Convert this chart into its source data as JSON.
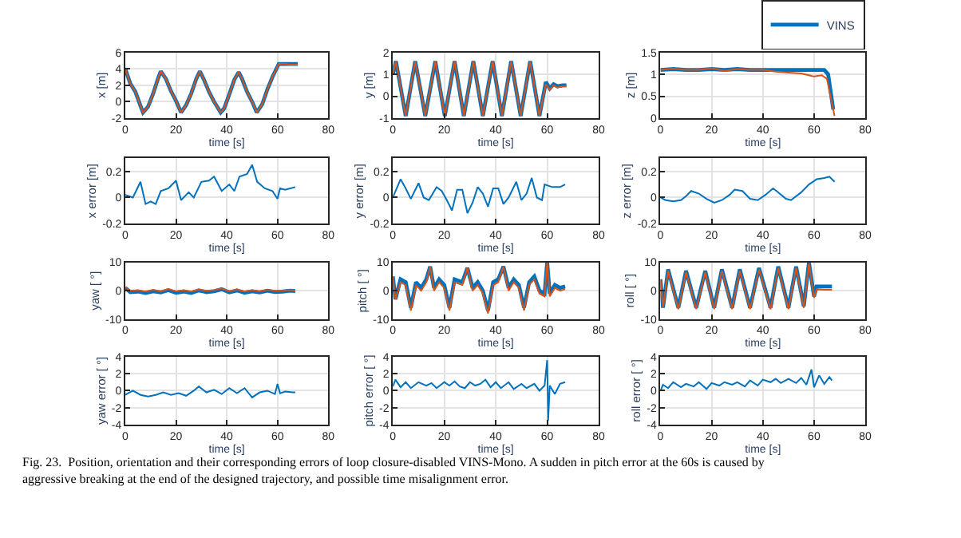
{
  "chart_data": [
    {
      "type": "line",
      "xlabel": "time [s]",
      "ylabel": "x [m]",
      "xlim": [
        0,
        80
      ],
      "xticks": [
        0,
        20,
        40,
        60,
        80
      ],
      "ylim": [
        -2,
        6
      ],
      "yticks": [
        -2,
        0,
        2,
        4,
        6
      ],
      "grid": true,
      "series": [
        {
          "color": "#0072bd",
          "x": [
            0,
            2,
            4,
            6,
            7,
            9,
            11,
            13,
            14,
            16,
            18,
            20,
            22,
            24,
            26,
            28,
            29.4,
            31,
            33,
            35,
            37.6,
            39,
            41,
            43,
            44.7,
            46,
            48,
            50,
            51.8,
            54,
            56,
            58,
            60.5,
            63,
            65,
            68
          ],
          "values": [
            4,
            2.2,
            1.2,
            -0.5,
            -1.3,
            -0.6,
            1.0,
            2.9,
            3.7,
            2.8,
            1.3,
            0.1,
            -1.3,
            -0.4,
            1.0,
            2.8,
            3.7,
            2.7,
            1.2,
            0.0,
            -1.3,
            -0.8,
            0.9,
            2.7,
            3.6,
            2.8,
            1.2,
            0.0,
            -1.3,
            -0.3,
            1.5,
            3.0,
            4.6,
            4.6,
            4.6,
            4.6
          ]
        },
        {
          "color": "#d95319",
          "x": [
            0,
            2,
            4,
            6,
            7,
            9,
            11,
            13,
            14,
            16,
            18,
            20,
            22,
            24,
            26,
            28,
            29.4,
            31,
            33,
            35,
            37.6,
            39,
            41,
            43,
            44.7,
            46,
            48,
            50,
            51.8,
            54,
            56,
            58,
            60.5,
            63,
            65,
            68
          ],
          "values": [
            4,
            2.2,
            1.2,
            -0.5,
            -1.3,
            -0.6,
            1.0,
            2.9,
            3.7,
            2.8,
            1.3,
            0.1,
            -1.3,
            -0.4,
            1.0,
            2.8,
            3.7,
            2.7,
            1.2,
            0.0,
            -1.3,
            -0.8,
            0.9,
            2.7,
            3.6,
            2.8,
            1.2,
            0.0,
            -1.3,
            -0.3,
            1.5,
            3.0,
            4.6,
            4.6,
            4.5,
            4.5
          ]
        }
      ]
    },
    {
      "type": "line",
      "xlabel": "time [s]",
      "ylabel": "y [m]",
      "xlim": [
        0,
        80
      ],
      "xticks": [
        0,
        20,
        40,
        60,
        80
      ],
      "ylim": [
        -1,
        2
      ],
      "yticks": [
        -1,
        0,
        1,
        2
      ],
      "grid": true,
      "series": [
        {
          "color": "#0072bd",
          "x": [
            0,
            1.2,
            5,
            8.7,
            12.6,
            16.5,
            20.2,
            24,
            27.6,
            31.3,
            35,
            38.8,
            42.4,
            46,
            49.7,
            53.4,
            57,
            59.5,
            61,
            62.5,
            64,
            66,
            67.5
          ],
          "values": [
            1.0,
            1.6,
            -0.9,
            1.6,
            -0.9,
            1.6,
            -0.9,
            1.6,
            -0.9,
            1.6,
            -0.9,
            1.6,
            -0.9,
            1.6,
            -0.9,
            1.6,
            -0.9,
            0.65,
            0.35,
            0.55,
            0.45,
            0.5,
            0.5
          ]
        },
        {
          "color": "#d95319",
          "x": [
            0,
            1.2,
            5,
            8.7,
            12.6,
            16.5,
            20.2,
            24,
            27.6,
            31.3,
            35,
            38.8,
            42.4,
            46,
            49.7,
            53.4,
            57,
            59.5,
            61,
            62.5,
            64,
            66,
            67.5
          ],
          "values": [
            1.0,
            1.6,
            -0.9,
            1.6,
            -0.9,
            1.6,
            -0.9,
            1.6,
            -0.9,
            1.6,
            -0.9,
            1.6,
            -0.9,
            1.6,
            -0.9,
            1.6,
            -0.9,
            0.55,
            0.3,
            0.5,
            0.4,
            0.45,
            0.45
          ]
        }
      ]
    },
    {
      "type": "line",
      "xlabel": "time [s]",
      "ylabel": "z [m]",
      "xlim": [
        0,
        80
      ],
      "xticks": [
        0,
        20,
        40,
        60,
        80
      ],
      "ylim": [
        0,
        1.5
      ],
      "yticks": [
        0,
        0.5,
        1,
        1.5
      ],
      "grid": true,
      "legend": "top right",
      "series": [
        {
          "name": "VINS",
          "color": "#0072bd",
          "x": [
            0,
            5,
            10,
            15,
            20,
            25,
            30,
            35,
            40,
            45,
            50,
            55,
            60,
            64,
            65.5,
            67.5
          ],
          "values": [
            1.1,
            1.12,
            1.1,
            1.1,
            1.12,
            1.1,
            1.12,
            1.1,
            1.1,
            1.1,
            1.1,
            1.1,
            1.1,
            1.1,
            1.0,
            0.2
          ]
        },
        {
          "color": "#d95319",
          "x": [
            0,
            5,
            10,
            15,
            20,
            25,
            30,
            35,
            40,
            45,
            50,
            55,
            60,
            63,
            65,
            68
          ],
          "values": [
            1.1,
            1.13,
            1.1,
            1.1,
            1.14,
            1.08,
            1.12,
            1.1,
            1.1,
            1.06,
            1.04,
            1.02,
            0.95,
            0.98,
            0.9,
            0.05
          ]
        }
      ]
    },
    {
      "type": "line",
      "xlabel": "time [s]",
      "ylabel": "x error [m]",
      "xlim": [
        0,
        80
      ],
      "xticks": [
        0,
        20,
        40,
        60,
        80
      ],
      "ylim": [
        -0.2,
        0.3
      ],
      "yticks": [
        -0.2,
        0,
        0.2
      ],
      "grid": true,
      "series": [
        {
          "color": "#0072bd",
          "x": [
            0,
            3,
            6,
            8,
            10,
            12,
            14,
            17,
            20,
            22,
            25,
            27,
            30,
            33,
            35,
            38,
            41,
            43,
            45,
            48,
            50,
            52,
            55,
            58,
            60,
            61,
            63,
            65,
            67
          ],
          "values": [
            0.02,
            0.0,
            0.12,
            -0.05,
            -0.03,
            -0.05,
            0.05,
            0.07,
            0.13,
            -0.02,
            0.04,
            0.0,
            0.12,
            0.13,
            0.16,
            0.05,
            0.1,
            0.05,
            0.16,
            0.18,
            0.25,
            0.12,
            0.07,
            0.05,
            -0.01,
            0.07,
            0.06,
            0.07,
            0.08
          ]
        }
      ]
    },
    {
      "type": "line",
      "xlabel": "time [s]",
      "ylabel": "y error [m]",
      "xlim": [
        0,
        80
      ],
      "xticks": [
        0,
        20,
        40,
        60,
        80
      ],
      "ylim": [
        -0.2,
        0.3
      ],
      "yticks": [
        -0.2,
        0,
        0.2
      ],
      "grid": true,
      "series": [
        {
          "color": "#0072bd",
          "x": [
            0,
            3,
            5,
            7,
            10,
            12,
            14,
            17,
            19,
            21,
            23,
            25,
            27,
            29,
            31,
            33,
            35,
            37,
            39,
            41,
            43,
            45,
            48,
            50,
            52,
            54,
            56,
            58,
            59,
            62,
            65,
            67
          ],
          "values": [
            0,
            0.14,
            0.07,
            -0.01,
            0.11,
            0.0,
            -0.02,
            0.08,
            0.05,
            -0.02,
            -0.1,
            0.06,
            0.06,
            -0.12,
            -0.04,
            0.08,
            0.03,
            -0.07,
            0.07,
            0.07,
            -0.05,
            0.0,
            0.12,
            -0.02,
            0.03,
            0.15,
            0.0,
            -0.02,
            0.1,
            0.08,
            0.08,
            0.1
          ]
        }
      ]
    },
    {
      "type": "line",
      "xlabel": "time [s]",
      "ylabel": "z error [m]",
      "xlim": [
        0,
        80
      ],
      "xticks": [
        0,
        20,
        40,
        60,
        80
      ],
      "ylim": [
        -0.2,
        0.3
      ],
      "yticks": [
        -0.2,
        0,
        0.2
      ],
      "grid": true,
      "series": [
        {
          "color": "#0072bd",
          "x": [
            0,
            2,
            5,
            8,
            10,
            12,
            15,
            18,
            21,
            24,
            27,
            29,
            32,
            35,
            38,
            41,
            44,
            46,
            49,
            51,
            55,
            58,
            61,
            64,
            66,
            68
          ],
          "values": [
            0,
            -0.02,
            -0.03,
            -0.02,
            0.01,
            0.05,
            0.03,
            -0.01,
            -0.04,
            -0.02,
            0.02,
            0.06,
            0.05,
            -0.01,
            -0.02,
            0.02,
            0.07,
            0.04,
            -0.01,
            -0.02,
            0.04,
            0.1,
            0.14,
            0.15,
            0.16,
            0.12
          ]
        }
      ]
    },
    {
      "type": "line",
      "xlabel": "time [s]",
      "ylabel": "yaw [ °]",
      "xlim": [
        0,
        80
      ],
      "xticks": [
        0,
        20,
        40,
        60,
        80
      ],
      "ylim": [
        -10,
        10
      ],
      "yticks": [
        -10,
        0,
        10
      ],
      "grid": true,
      "series": [
        {
          "color": "#0072bd",
          "x": [
            0,
            2,
            5,
            8,
            11,
            14,
            17,
            20,
            23,
            26,
            29,
            32,
            35,
            38,
            41,
            44,
            47,
            50,
            53,
            56,
            59,
            62,
            65,
            67
          ],
          "values": [
            1.0,
            -0.5,
            -0.3,
            -0.8,
            -0.2,
            -0.6,
            0.2,
            -0.7,
            -0.3,
            -0.8,
            0.1,
            -0.5,
            -0.2,
            0.5,
            -0.6,
            0.1,
            -0.7,
            -0.2,
            -0.6,
            0.0,
            -0.5,
            -0.3,
            0.0,
            -0.1
          ]
        },
        {
          "color": "#d95319",
          "x": [
            0,
            2,
            5,
            8,
            11,
            14,
            17,
            20,
            23,
            26,
            29,
            32,
            35,
            38,
            41,
            44,
            47,
            50,
            53,
            56,
            59,
            62,
            65,
            67
          ],
          "values": [
            1.2,
            0.0,
            0.2,
            -0.3,
            0.3,
            -0.2,
            0.6,
            -0.2,
            0.2,
            -0.3,
            0.4,
            0.0,
            0.2,
            0.8,
            -0.2,
            0.4,
            -0.3,
            0.2,
            -0.2,
            0.3,
            0.0,
            0.0,
            0.2,
            0.0
          ]
        }
      ]
    },
    {
      "type": "line",
      "xlabel": "time [s]",
      "ylabel": "pitch [ °]",
      "xlim": [
        0,
        80
      ],
      "xticks": [
        0,
        20,
        40,
        60,
        80
      ],
      "ylim": [
        -10,
        10
      ],
      "yticks": [
        -10,
        0,
        10
      ],
      "grid": true,
      "series": [
        {
          "color": "#0072bd",
          "x": [
            0,
            1,
            3,
            5,
            7,
            9,
            11,
            13,
            14.5,
            16,
            18,
            20,
            22,
            24,
            27,
            29,
            31,
            33,
            35,
            37,
            39,
            41,
            43,
            45,
            47,
            49,
            51,
            53,
            55,
            57,
            59,
            60,
            61,
            63,
            65,
            67
          ],
          "values": [
            5,
            -3,
            4,
            3,
            -6,
            3,
            1,
            4,
            8.5,
            1,
            4,
            2,
            -6,
            4,
            3,
            8,
            1,
            3,
            0,
            -7,
            3,
            4,
            8.5,
            1,
            4,
            2,
            -6,
            3,
            5,
            0,
            -1,
            10,
            -1,
            2,
            1,
            1.5
          ]
        },
        {
          "color": "#d95319",
          "x": [
            0,
            1,
            3,
            5,
            7,
            9,
            11,
            13,
            14.5,
            16,
            18,
            20,
            22,
            24,
            27,
            29,
            31,
            33,
            35,
            37,
            39,
            41,
            43,
            45,
            47,
            49,
            51,
            53,
            55,
            57,
            59,
            60,
            61,
            63,
            65,
            67
          ],
          "values": [
            5,
            -3,
            3,
            2,
            -7,
            2,
            0,
            3,
            8.5,
            0,
            3,
            1,
            -7,
            3,
            2,
            8,
            0,
            2,
            -1,
            -8,
            2,
            3,
            8.5,
            0,
            3,
            1,
            -7,
            2,
            4,
            -1,
            -2,
            10,
            -2,
            1,
            0,
            0.5
          ]
        }
      ]
    },
    {
      "type": "line",
      "xlabel": "time [s]",
      "ylabel": "roll [ °]",
      "xlim": [
        0,
        80
      ],
      "xticks": [
        0,
        20,
        40,
        60,
        80
      ],
      "ylim": [
        -10,
        10
      ],
      "yticks": [
        -10,
        0,
        10
      ],
      "grid": true,
      "series": [
        {
          "color": "#0072bd",
          "x": [
            0,
            1,
            3,
            7,
            10,
            14,
            17.5,
            21,
            24,
            28,
            31,
            35,
            38.5,
            43,
            46,
            50,
            53,
            56,
            58,
            60,
            61,
            64,
            67
          ],
          "values": [
            4,
            -6,
            7.5,
            -6,
            7,
            -6,
            7,
            -6,
            7.5,
            -6,
            7.5,
            -6,
            8,
            -6,
            8.5,
            -6,
            8.5,
            -5.5,
            10,
            -2,
            1.5,
            1.5,
            1.5
          ]
        },
        {
          "color": "#d95319",
          "x": [
            0,
            1,
            3,
            7,
            10,
            14,
            17.5,
            21,
            24,
            28,
            31,
            35,
            38.5,
            43,
            46,
            50,
            53,
            56,
            58,
            60,
            61,
            64,
            67
          ],
          "values": [
            4,
            -6,
            7,
            -6.5,
            6.5,
            -6.5,
            6.5,
            -6.5,
            7,
            -6.5,
            7,
            -6.5,
            7.5,
            -6.5,
            8,
            -6.5,
            8,
            -6,
            9.5,
            -2.5,
            0.5,
            0.3,
            0.3
          ]
        }
      ]
    },
    {
      "type": "line",
      "xlabel": "time [s]",
      "ylabel": "yaw error [ °]",
      "xlim": [
        0,
        80
      ],
      "xticks": [
        0,
        20,
        40,
        60,
        80
      ],
      "ylim": [
        -4,
        4
      ],
      "yticks": [
        -4,
        -2,
        0,
        2,
        4
      ],
      "grid": true,
      "series": [
        {
          "color": "#0072bd",
          "x": [
            0,
            3,
            6,
            9,
            12,
            15,
            18,
            21,
            24,
            27,
            29,
            32,
            35,
            38,
            41,
            44,
            47,
            50,
            53,
            56,
            59,
            60,
            61,
            63,
            66,
            67
          ],
          "values": [
            -0.5,
            0,
            -0.5,
            -0.7,
            -0.5,
            -0.2,
            -0.5,
            -0.3,
            -0.6,
            0,
            0.5,
            -0.2,
            0.1,
            -0.4,
            0.3,
            -0.3,
            0.3,
            -0.8,
            -0.2,
            0,
            -0.4,
            0.8,
            -0.3,
            -0.1,
            -0.2,
            -0.2
          ]
        }
      ]
    },
    {
      "type": "line",
      "xlabel": "time [s]",
      "ylabel": "pitch error [ °]",
      "xlim": [
        0,
        80
      ],
      "xticks": [
        0,
        20,
        40,
        60,
        80
      ],
      "ylim": [
        -4,
        4
      ],
      "yticks": [
        -4,
        -2,
        0,
        2,
        4
      ],
      "grid": true,
      "series": [
        {
          "color": "#0072bd",
          "x": [
            0,
            1,
            3,
            5,
            7,
            10,
            13,
            15,
            17,
            20,
            22,
            24,
            26,
            28,
            30,
            32,
            34,
            36,
            38,
            40,
            42,
            45,
            47,
            50,
            52,
            55,
            57,
            59,
            60,
            60.4,
            61,
            63,
            65,
            67
          ],
          "values": [
            0.5,
            1.3,
            0.4,
            1,
            0.3,
            1,
            0.6,
            0.9,
            0.3,
            1.0,
            0.6,
            1.1,
            0.5,
            0.3,
            1.0,
            0.6,
            0.8,
            1.3,
            0.4,
            1.0,
            0.3,
            1.0,
            0.2,
            0.8,
            0.3,
            0.8,
            0,
            0.6,
            3.6,
            -3.5,
            0.6,
            -0.4,
            0.8,
            1.0
          ]
        }
      ]
    },
    {
      "type": "line",
      "xlabel": "time [s]",
      "ylabel": "roll error [ °]",
      "xlim": [
        0,
        80
      ],
      "xticks": [
        0,
        20,
        40,
        60,
        80
      ],
      "ylim": [
        -4,
        4
      ],
      "yticks": [
        -4,
        -2,
        0,
        2,
        4
      ],
      "grid": true,
      "annotations": [
        "Fig. 23.  Position, orientation and their corresponding errors of loop closure-disabled VINS-Mono. A sudden in pitch error at the 60s is caused by aggressive breaking at the end of the designed trajectory, and possible time misalignment error."
      ],
      "series": [
        {
          "color": "#0072bd",
          "x": [
            0,
            1,
            3,
            5,
            8,
            10,
            13,
            15,
            18,
            20,
            23,
            25,
            28,
            30,
            33,
            35,
            38,
            40,
            43,
            45,
            47,
            50,
            53,
            55,
            57,
            59,
            60,
            62,
            64,
            66,
            67
          ],
          "values": [
            0,
            0.7,
            0.3,
            1,
            0.4,
            0.8,
            0.5,
            1,
            0.2,
            0.9,
            0.6,
            1,
            0.7,
            1,
            0.5,
            1.2,
            0.6,
            1.3,
            1.0,
            1.4,
            0.9,
            1.4,
            0.9,
            1.5,
            0.7,
            2.5,
            0.4,
            1.8,
            0.8,
            1.6,
            1.2
          ]
        }
      ]
    }
  ]
}
